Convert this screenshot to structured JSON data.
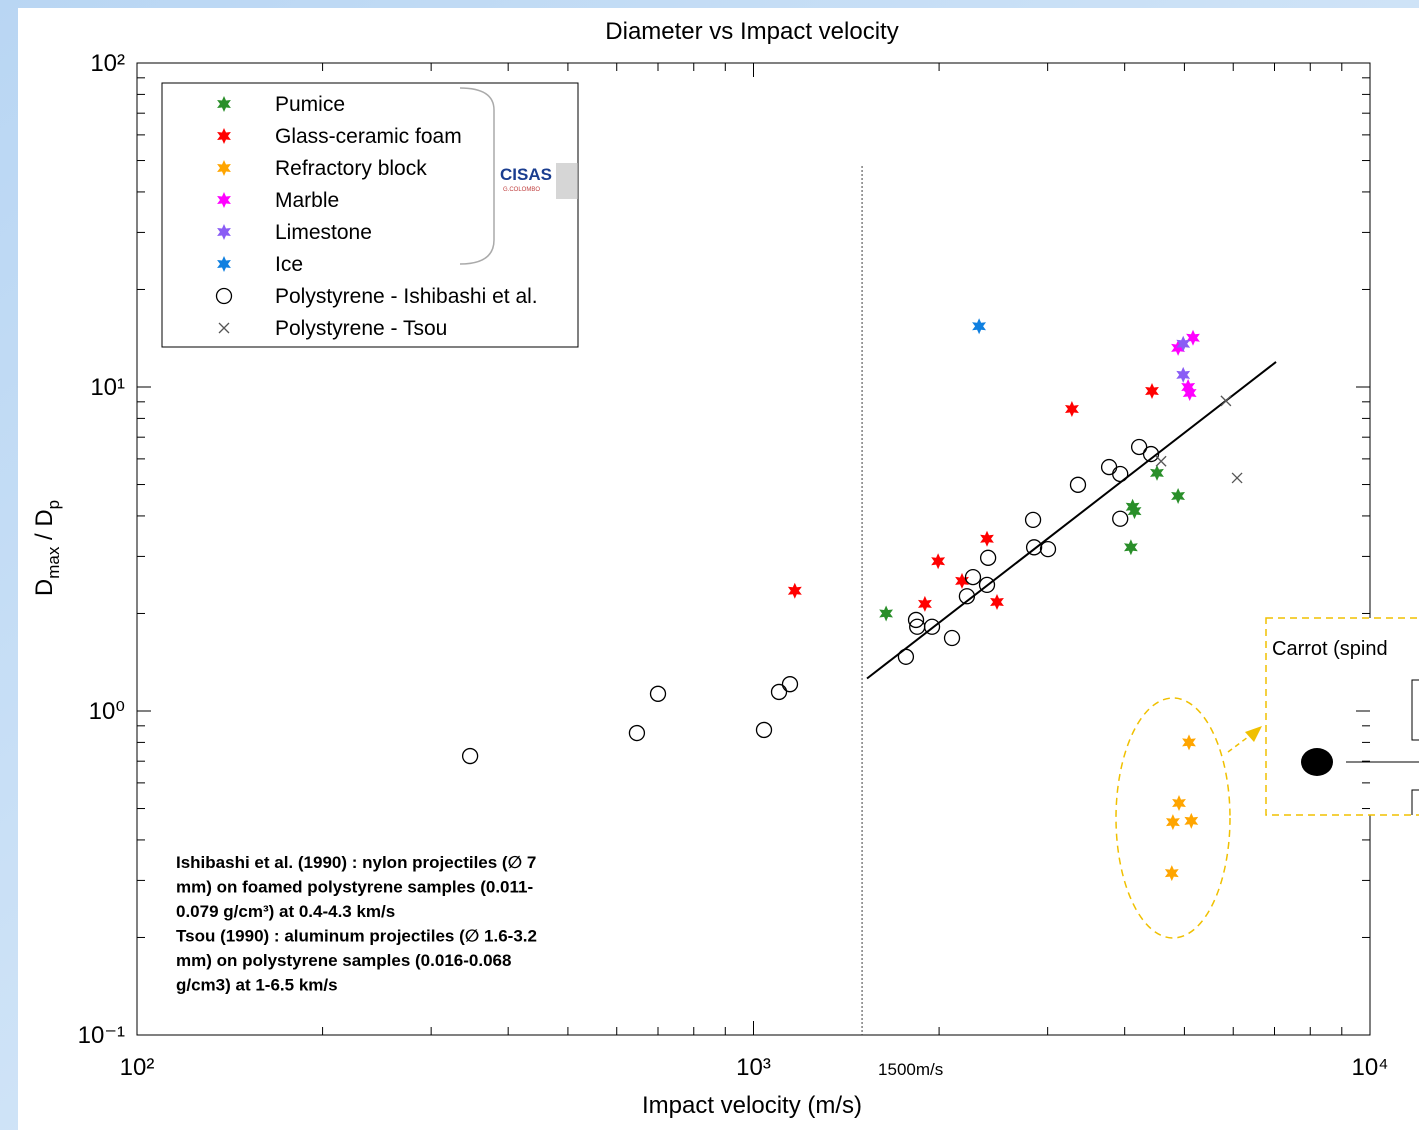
{
  "chart_data": {
    "type": "scatter",
    "title": "Diameter vs Impact velocity",
    "x_label": "Impact velocity (m/s)",
    "y_label": [
      "D",
      "max",
      " / D",
      "p"
    ],
    "x_log": true,
    "y_log": true,
    "xlim": [
      100,
      10000
    ],
    "ylim": [
      0.1,
      100
    ],
    "xticks": [
      {
        "value": 100,
        "label": "10²"
      },
      {
        "value": 1000,
        "label": "10³"
      },
      {
        "value": 10000,
        "label": "10⁴"
      }
    ],
    "yticks": [
      {
        "value": 0.1,
        "label": "10⁻¹"
      },
      {
        "value": 1,
        "label": "10⁰"
      },
      {
        "value": 10,
        "label": "10¹"
      },
      {
        "value": 100,
        "label": "10²"
      }
    ],
    "legend": "upper left",
    "series": [
      {
        "name": "Pumice",
        "color": "#2a8f2a",
        "marker": "hexagram",
        "x": [
          1641,
          4094,
          4120,
          4150,
          4513,
          4883
        ],
        "values": [
          2.0,
          3.2,
          4.27,
          4.14,
          5.43,
          4.61
        ]
      },
      {
        "name": "Glass-ceramic foam",
        "color": "#ff0000",
        "marker": "hexagram",
        "x": [
          1167,
          1897,
          1993,
          2179,
          2392,
          2483,
          3285,
          4430
        ],
        "values": [
          2.35,
          2.14,
          2.9,
          2.52,
          3.4,
          2.17,
          8.55,
          9.72
        ]
      },
      {
        "name": "Refractory block",
        "color": "#ffa500",
        "marker": "hexagram",
        "x": [
          5086,
          4900,
          4790,
          5130,
          4770
        ],
        "values": [
          0.8,
          0.52,
          0.454,
          0.458,
          0.316
        ]
      },
      {
        "name": "Marble",
        "color": "#ff00ff",
        "marker": "hexagram",
        "x": [
          4883,
          5070,
          5100,
          5163
        ],
        "values": [
          13.2,
          10.0,
          9.58,
          14.2
        ]
      },
      {
        "name": "Limestone",
        "color": "#8a5cf5",
        "marker": "hexagram",
        "x": [
          4977,
          4977
        ],
        "values": [
          13.6,
          10.9
        ]
      },
      {
        "name": "Ice",
        "color": "#1080e0",
        "marker": "hexagram",
        "x": [
          2322
        ],
        "values": [
          15.4
        ]
      },
      {
        "name": "Polystyrene - Ishibashi et al.",
        "color": "#000000",
        "marker": "circle",
        "x": [
          347,
          647,
          700,
          1040,
          1100,
          1146,
          1767,
          1835,
          1843,
          1948,
          2099,
          2219,
          2270,
          2392,
          2402,
          2841,
          2852,
          3004,
          3360,
          3774,
          3934,
          3934,
          4222,
          4414
        ],
        "values": [
          0.726,
          0.855,
          1.13,
          0.874,
          1.145,
          1.21,
          1.47,
          1.91,
          1.82,
          1.82,
          1.68,
          2.26,
          2.59,
          2.45,
          2.97,
          3.89,
          3.2,
          3.16,
          4.99,
          5.66,
          5.39,
          3.92,
          6.53,
          6.21
        ]
      },
      {
        "name": "Polystyrene - Tsou",
        "color": "#555555",
        "marker": "x",
        "x": [
          4583,
          5838,
          6087
        ],
        "values": [
          5.9,
          9.06,
          5.24
        ]
      }
    ],
    "fit_line": {
      "x": [
        1528,
        7040
      ],
      "values": [
        1.26,
        11.95
      ]
    },
    "vline": {
      "x": 1500,
      "y_top": 48,
      "label": "1500m/s"
    },
    "logo": [
      "CISAS",
      "G.COLOMBO"
    ],
    "note": [
      "Ishibashi et al. (1990) : nylon projectiles (∅ 7",
      "mm) on foamed polystyrene samples (0.011-",
      "0.079 g/cm³)  at 0.4-4.3 km/s",
      "Tsou (1990) : aluminum projectiles (∅ 1.6-3.2",
      "mm) on polystyrene samples (0.016-0.068",
      "g/cm3)  at 1-6.5 km/s"
    ],
    "inset_label": "Carrot (spind"
  }
}
